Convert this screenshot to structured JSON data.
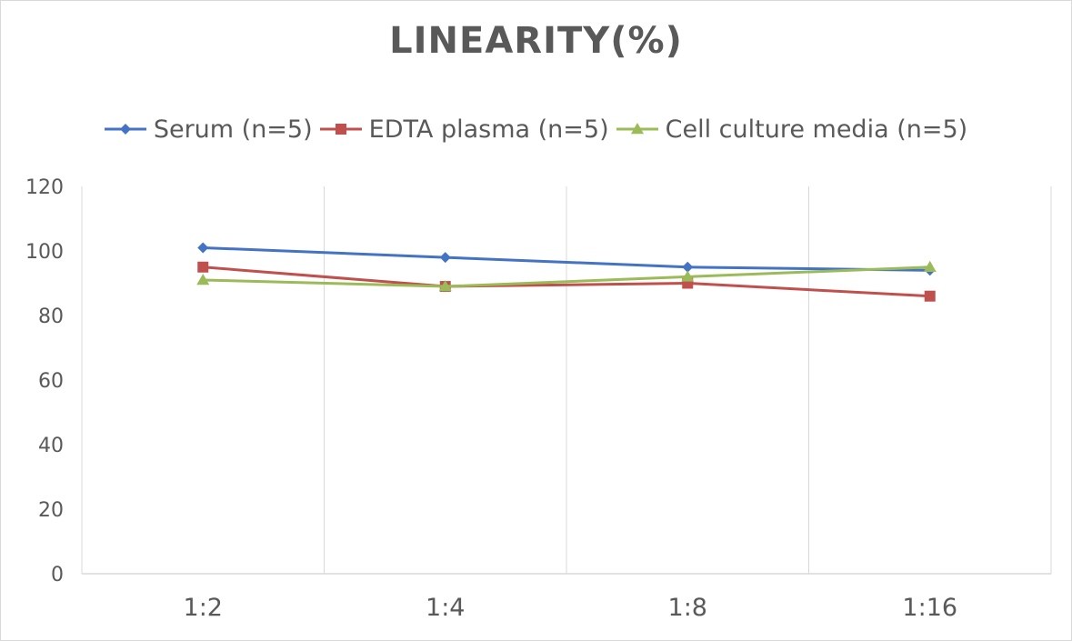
{
  "chart_data": {
    "type": "line",
    "title": "LINEARITY(%)",
    "xlabel": "",
    "ylabel": "",
    "categories": [
      "1:2",
      "1:4",
      "1:8",
      "1:16"
    ],
    "ylim": [
      0,
      120
    ],
    "yticks": [
      0,
      20,
      40,
      60,
      80,
      100,
      120
    ],
    "grid": "vertical",
    "legend_position": "top",
    "series": [
      {
        "name": "Serum (n=5)",
        "values": [
          101,
          98,
          95,
          94
        ],
        "color": "#4472c4",
        "marker": "diamond"
      },
      {
        "name": "EDTA plasma (n=5)",
        "values": [
          95,
          89,
          90,
          86
        ],
        "color": "#c0504d",
        "marker": "square"
      },
      {
        "name": "Cell culture media (n=5)",
        "values": [
          91,
          89,
          92,
          95
        ],
        "color": "#9bbb59",
        "marker": "triangle"
      }
    ]
  }
}
